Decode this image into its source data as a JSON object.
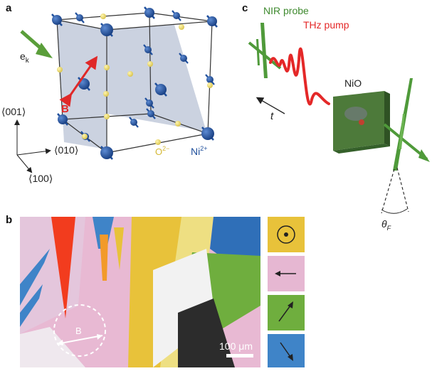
{
  "panel_a": {
    "label": "a",
    "axis_001": "⟨001⟩",
    "axis_010": "⟨010⟩",
    "axis_100": "⟨100⟩",
    "ek_label": "e",
    "ek_sub": "k",
    "b_label": "B",
    "o_label": "O",
    "o_sup": "2−",
    "ni_label": "Ni",
    "ni_sup": "2+",
    "colors": {
      "ni": "#1f4f9c",
      "oxygen": "#e8d860",
      "plane": "#b9c3d6",
      "ek_arrow": "#5a9e3a",
      "b_arrow": "#e02828"
    }
  },
  "panel_b": {
    "label": "b",
    "b_label": "B",
    "scale_label": "100 μm",
    "legend": [
      {
        "color": "#e8c23a",
        "icon": "out-of-plane-dot-icon"
      },
      {
        "color": "#e6b7d2",
        "icon": "arrow-left-icon"
      },
      {
        "color": "#6fae3e",
        "icon": "arrow-up-right-icon"
      },
      {
        "color": "#3f84c8",
        "icon": "arrow-down-right-icon"
      }
    ]
  },
  "panel_c": {
    "label": "c",
    "nir_label": "NIR probe",
    "thz_label": "THz pump",
    "nio_label": "NiO",
    "t_label": "t",
    "theta_label": "θ",
    "theta_sub": "F",
    "colors": {
      "nir": "#4f9a3a",
      "thz": "#e42828",
      "nio": "#4d7a3a"
    }
  }
}
